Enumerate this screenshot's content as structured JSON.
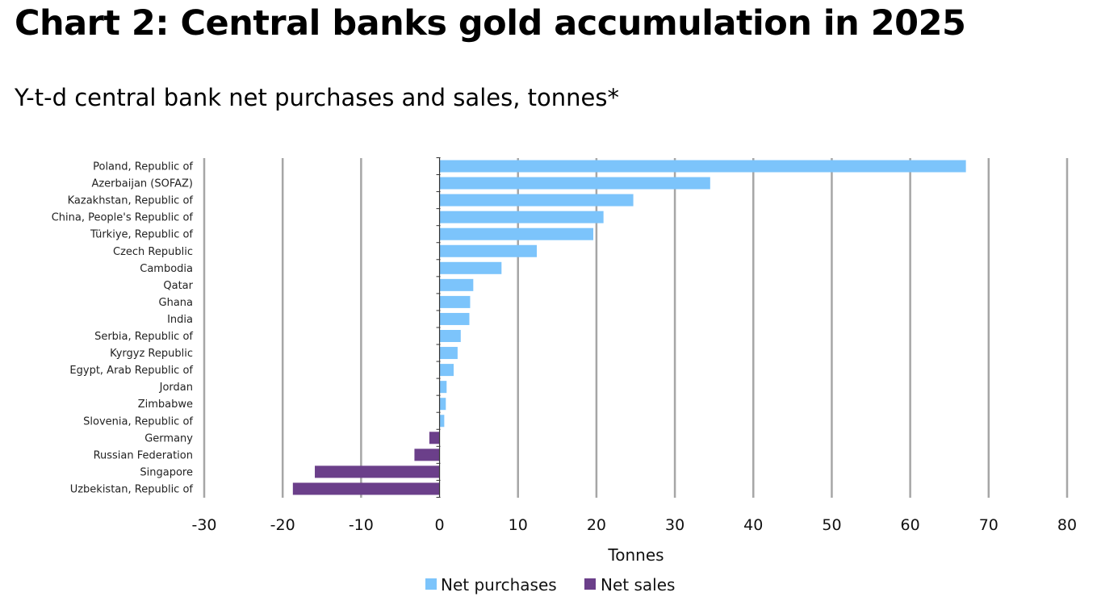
{
  "title": "Chart 2: Central banks gold accumulation in 2025",
  "subtitle": "Y-t-d central bank net purchases and sales, tonnes*",
  "chart_data": {
    "type": "bar",
    "orientation": "horizontal",
    "categories": [
      "Poland, Republic of",
      "Azerbaijan (SOFAZ)",
      "Kazakhstan, Republic of",
      "China, People's Republic of",
      "Türkiye, Republic of",
      "Czech Republic",
      "Cambodia",
      "Qatar",
      "Ghana",
      "India",
      "Serbia, Republic of",
      "Kyrgyz Republic",
      "Egypt, Arab Republic of",
      "Jordan",
      "Zimbabwe",
      "Slovenia, Republic of",
      "Germany",
      "Russian Federation",
      "Singapore",
      "Uzbekistan, Republic of"
    ],
    "values": [
      67.1,
      34.5,
      24.7,
      20.9,
      19.6,
      12.4,
      7.9,
      4.3,
      3.9,
      3.8,
      2.7,
      2.3,
      1.8,
      0.9,
      0.8,
      0.6,
      -1.3,
      -3.2,
      -15.9,
      -18.7
    ],
    "xlabel": "Tonnes",
    "xlim": [
      -30,
      80
    ],
    "xticks": [
      -30,
      -20,
      -10,
      0,
      10,
      20,
      30,
      40,
      50,
      60,
      70,
      80
    ],
    "grid": "vertical",
    "legend_position": "bottom",
    "series": [
      {
        "name": "Net purchases",
        "color": "#7cc4fb"
      },
      {
        "name": "Net sales",
        "color": "#6b3f8a"
      }
    ]
  }
}
